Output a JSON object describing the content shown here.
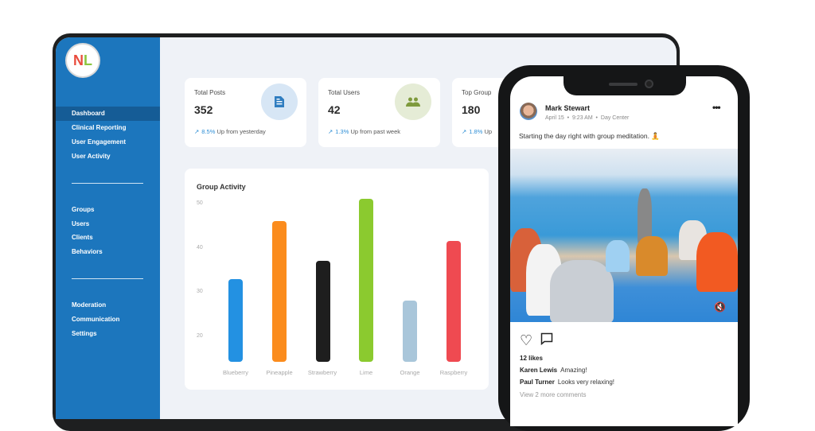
{
  "sidebar": {
    "logo": {
      "letters": [
        "N",
        "L"
      ]
    },
    "groups": [
      [
        {
          "label": "Dashboard",
          "active": true
        },
        {
          "label": "Clinical Reporting"
        },
        {
          "label": "User Engagement"
        },
        {
          "label": "User Activity"
        }
      ],
      [
        {
          "label": "Groups"
        },
        {
          "label": "Users"
        },
        {
          "label": "Clients"
        },
        {
          "label": "Behaviors"
        }
      ],
      [
        {
          "label": "Moderation"
        },
        {
          "label": "Communication"
        },
        {
          "label": "Settings"
        }
      ]
    ]
  },
  "stats": [
    {
      "label": "Total Posts",
      "value": "352",
      "pct": "8.5%",
      "trend": "Up from yesterday",
      "icon": "document-icon",
      "icon_bg": "#d7e6f5",
      "icon_color": "#2f7dc0"
    },
    {
      "label": "Total Users",
      "value": "42",
      "pct": "1.3%",
      "trend": "Up from past week",
      "icon": "users-icon",
      "icon_bg": "#e5ecd6",
      "icon_color": "#7e9a3c"
    },
    {
      "label": "Top Group",
      "value": "180",
      "pct": "1.8%",
      "trend": "Up"
    }
  ],
  "chart_data": {
    "type": "bar",
    "title": "Group Activity",
    "categories": [
      "Blueberry",
      "Pineapple",
      "Strawberry",
      "Lime",
      "Orange",
      "Raspberry"
    ],
    "values": [
      33,
      46,
      37,
      51,
      28,
      41.5
    ],
    "colors": [
      "#2391e2",
      "#fb8c1d",
      "#1e1e1e",
      "#8bca2f",
      "#a9c6da",
      "#ef4a51"
    ],
    "yticks": [
      50,
      40,
      30,
      20
    ],
    "ylim": [
      15,
      52
    ],
    "xlabel": "",
    "ylabel": "",
    "grid": false
  },
  "post": {
    "author": "Mark Stewart",
    "date": "April 15",
    "time": "9:23 AM",
    "location": "Day Center",
    "caption": "Starting the day right with group meditation. 🧘",
    "likes": "12 likes",
    "comments": [
      {
        "author": "Karen Lewis",
        "text": "Amazing!"
      },
      {
        "author": "Paul Turner",
        "text": "Looks very relaxing!"
      }
    ],
    "view_more": "View 2 more comments",
    "more_icon": "•••",
    "mute_icon": "🔇"
  }
}
